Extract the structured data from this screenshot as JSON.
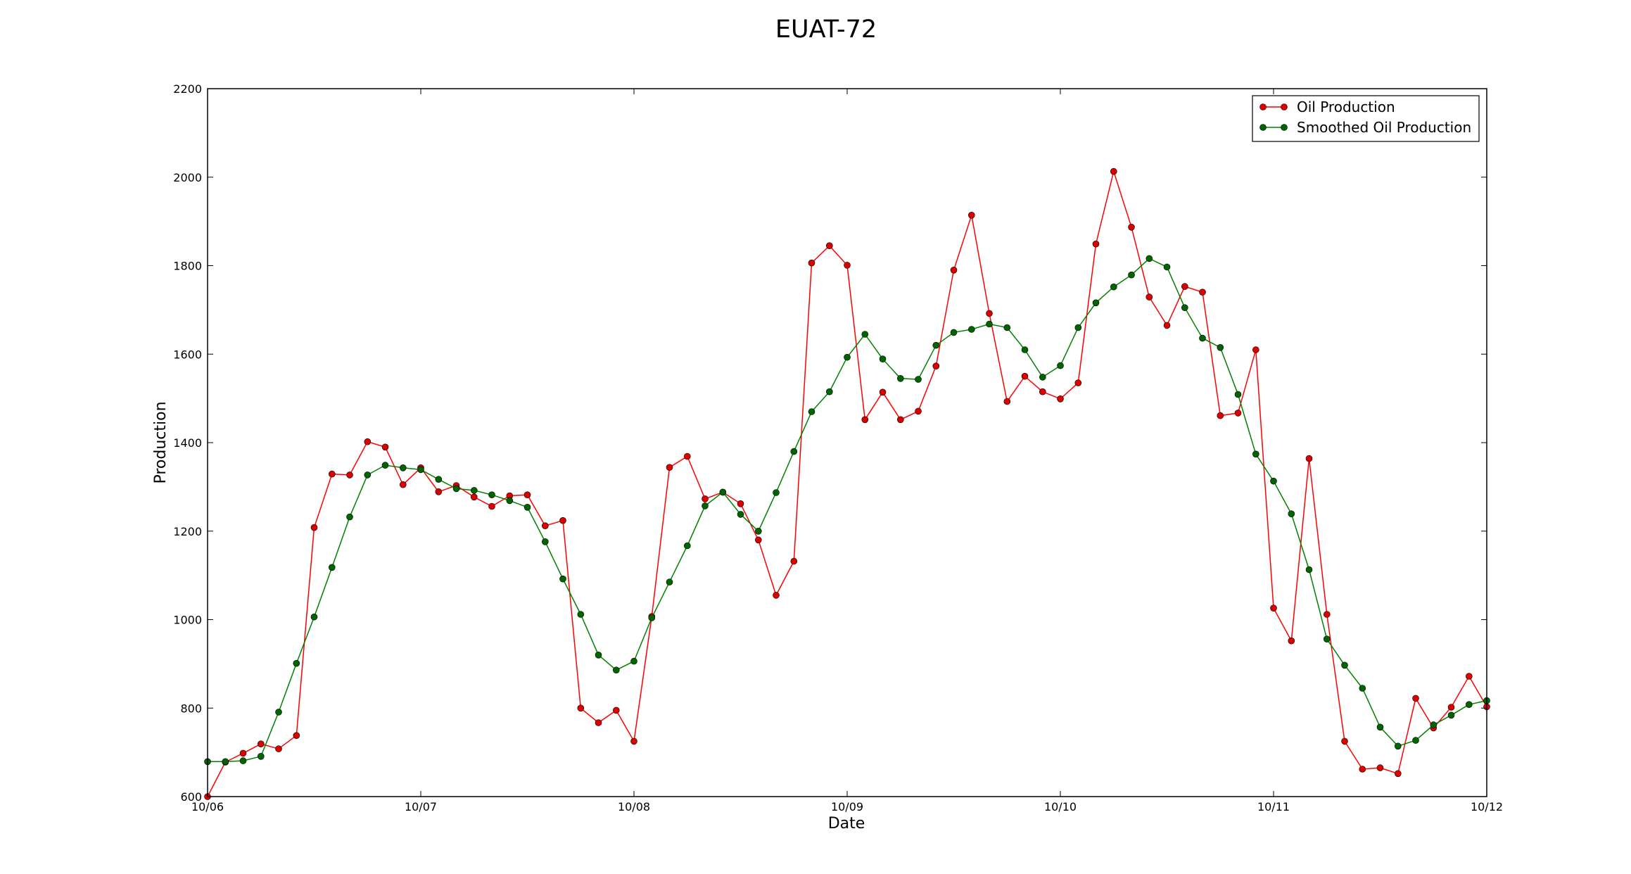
{
  "chart_data": {
    "type": "line",
    "title": "EUAT-72",
    "xlabel": "Date",
    "ylabel": "Production",
    "x_tick_labels": [
      "10/06",
      "10/07",
      "10/08",
      "10/09",
      "10/10",
      "10/11",
      "10/12"
    ],
    "y_tick_labels": [
      "600",
      "800",
      "1000",
      "1200",
      "1400",
      "1600",
      "1800",
      "2000",
      "2200"
    ],
    "ylim": [
      600,
      2200
    ],
    "legend_position": "top-right",
    "grid": false,
    "series": [
      {
        "name": "Oil Production",
        "color": "#ff0000",
        "marker_color": "#dd0000",
        "values": [
          600,
          678,
          698,
          719,
          708,
          738,
          1208,
          1329,
          1327,
          1402,
          1390,
          1305,
          1343,
          1289,
          1303,
          1277,
          1256,
          1280,
          1282,
          1212,
          1224,
          800,
          767,
          795,
          725,
          1007,
          1344,
          1369,
          1273,
          1288,
          1262,
          1180,
          1055,
          1132,
          1806,
          1845,
          1801,
          1452,
          1514,
          1452,
          1471,
          1573,
          1790,
          1914,
          1692,
          1493,
          1550,
          1515,
          1499,
          1535,
          1849,
          2013,
          1887,
          1729,
          1665,
          1753,
          1740,
          1461,
          1467,
          1610,
          1026,
          952,
          1364,
          1012,
          725,
          662,
          665,
          652,
          822,
          755,
          802,
          872,
          803
        ]
      },
      {
        "name": "Smoothed Oil Production",
        "color": "#008000",
        "marker_color": "#006400",
        "values": [
          679,
          679,
          681,
          691,
          791,
          901,
          1006,
          1118,
          1232,
          1327,
          1349,
          1343,
          1339,
          1317,
          1296,
          1292,
          1282,
          1269,
          1254,
          1176,
          1092,
          1012,
          920,
          886,
          906,
          1004,
          1085,
          1167,
          1257,
          1288,
          1238,
          1200,
          1287,
          1380,
          1470,
          1515,
          1593,
          1645,
          1589,
          1545,
          1543,
          1620,
          1649,
          1656,
          1668,
          1660,
          1610,
          1548,
          1574,
          1660,
          1716,
          1752,
          1779,
          1816,
          1797,
          1705,
          1636,
          1615,
          1509,
          1374,
          1313,
          1239,
          1113,
          956,
          897,
          845,
          757,
          714,
          727,
          762,
          784,
          808,
          817
        ]
      }
    ]
  }
}
